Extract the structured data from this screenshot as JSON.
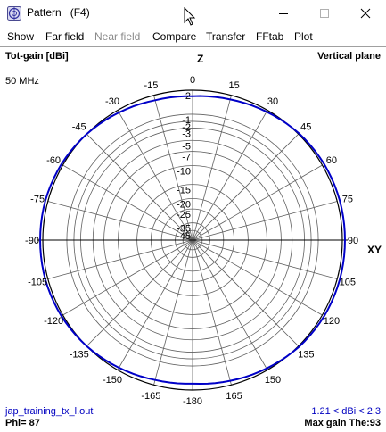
{
  "window": {
    "title": "Pattern   (F4)",
    "app_icon": "antenna-pattern-icon",
    "controls": [
      "minimize-icon",
      "maximize-icon",
      "close-icon"
    ]
  },
  "menu": {
    "items": [
      {
        "label": "Show",
        "enabled": true
      },
      {
        "label": "Far field",
        "enabled": true
      },
      {
        "label": "Near field",
        "enabled": false
      },
      {
        "label": "Compare",
        "enabled": true
      },
      {
        "label": "Transfer",
        "enabled": true
      },
      {
        "label": "FFtab",
        "enabled": true
      },
      {
        "label": "Plot",
        "enabled": true
      }
    ]
  },
  "plot": {
    "top_left": "Tot-gain [dBi]",
    "top_right": "Vertical plane",
    "frequency": "50 MHz",
    "axis_z": "Z",
    "axis_xy": "XY",
    "filename": "jap_training_tx_l.out",
    "range_text": "1.21 < dBi < 2.3",
    "phi": "Phi= 87",
    "max_gain": "Max gain The:93",
    "colors": {
      "grid": "#606060",
      "trace": "#0000c8",
      "info": "#0000c0"
    }
  },
  "chart_data": {
    "type": "polar",
    "plane": "vertical",
    "radial_unit": "dBi",
    "radial_ticks": [
      2,
      -2,
      -1,
      -3,
      -5,
      -7,
      -10,
      -15,
      -20,
      -25,
      -35,
      -45
    ],
    "angle_ticks": [
      "0",
      "-15",
      "-30",
      "-45",
      "-60",
      "-75",
      "-90",
      "-105",
      "-120",
      "-135",
      "-150",
      "-165",
      "-180",
      "165",
      "150",
      "135",
      "120",
      "105",
      "90",
      "75",
      "60",
      "45",
      "30",
      "15"
    ],
    "series": [
      {
        "theta_deg": [
          0,
          15,
          30,
          45,
          60,
          75,
          90,
          105,
          120,
          135,
          150,
          165,
          180,
          195,
          210,
          225,
          240,
          255,
          270,
          285,
          300,
          315,
          330,
          345
        ],
        "gain_dbi": [
          1.3,
          1.5,
          1.8,
          2.1,
          2.25,
          2.3,
          2.3,
          2.3,
          2.25,
          2.1,
          1.8,
          1.5,
          1.25,
          1.4,
          1.7,
          2.0,
          2.2,
          2.3,
          2.3,
          2.3,
          2.2,
          2.0,
          1.7,
          1.4
        ]
      }
    ]
  }
}
